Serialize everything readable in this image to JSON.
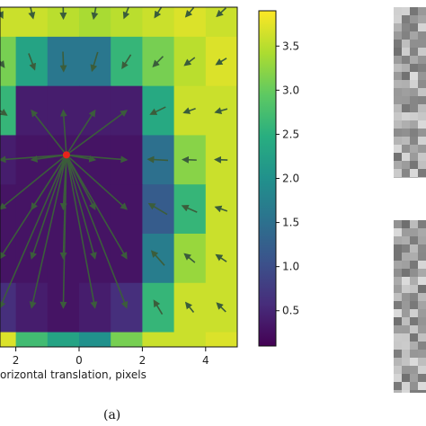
{
  "figure": {
    "caption": "(a)"
  },
  "chart_data": {
    "type": "heatmap",
    "title": "",
    "xlabel": "orizontal translation, pixels",
    "ylabel": "",
    "xlim": [
      -2.5,
      5
    ],
    "ylim": [
      -2.8,
      4.1
    ],
    "x_ticks": [
      {
        "value": -2,
        "label": "2"
      },
      {
        "value": 0,
        "label": "0"
      },
      {
        "value": 2,
        "label": "2"
      },
      {
        "value": 4,
        "label": "4"
      }
    ],
    "cell_centers_x": [
      -2.5,
      -1.5,
      -0.5,
      0.5,
      1.5,
      2.5,
      3.5,
      4.5
    ],
    "cell_centers_y": [
      4.0,
      3.0,
      2.0,
      1.0,
      0.0,
      -1.0,
      -2.0,
      -3.0
    ],
    "values": [
      [
        3.6,
        3.6,
        3.5,
        3.4,
        3.5,
        3.6,
        3.7,
        3.6
      ],
      [
        3.1,
        2.3,
        1.6,
        1.6,
        2.6,
        3.1,
        3.5,
        3.7
      ],
      [
        2.6,
        0.4,
        0.4,
        0.4,
        0.4,
        2.4,
        3.6,
        3.6
      ],
      [
        0.4,
        0.3,
        0.3,
        0.3,
        0.3,
        1.5,
        3.2,
        3.6
      ],
      [
        0.3,
        0.3,
        0.3,
        0.3,
        0.3,
        1.2,
        2.6,
        3.6
      ],
      [
        0.3,
        0.3,
        0.3,
        0.3,
        0.3,
        1.7,
        3.3,
        3.6
      ],
      [
        0.6,
        0.4,
        0.3,
        0.4,
        0.6,
        2.6,
        3.6,
        3.6
      ],
      [
        3.7,
        2.7,
        2.3,
        2.0,
        3.1,
        3.6,
        3.6,
        3.7
      ]
    ],
    "colormap": "viridis",
    "arrow_color": "#3b5d3b",
    "marker": {
      "x": -0.4,
      "y": 1.1,
      "color": "#e8231c"
    },
    "colorbar": {
      "min": 0.1,
      "max": 3.9,
      "ticks": [
        0.5,
        1.0,
        1.5,
        2.0,
        2.5,
        3.0,
        3.5
      ],
      "tick_labels": [
        "0.5",
        "1.0",
        "1.5",
        "2.0",
        "2.5",
        "3.0",
        "3.5"
      ]
    }
  },
  "insets": [
    {
      "name": "grayscale-patch-top",
      "description": "grayscale image patch"
    },
    {
      "name": "grayscale-patch-bottom",
      "description": "grayscale image patch"
    }
  ]
}
